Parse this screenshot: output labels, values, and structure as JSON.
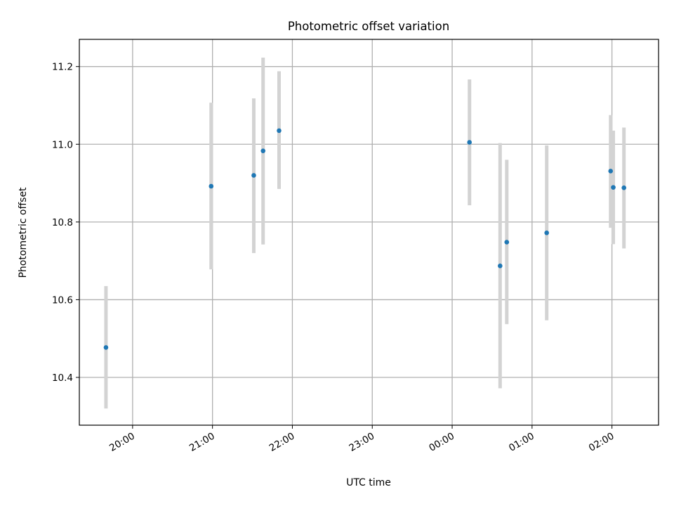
{
  "chart_data": {
    "type": "scatter",
    "title": "Photometric offset variation",
    "xlabel": "UTC time",
    "ylabel": "Photometric offset",
    "x_axis": {
      "kind": "time",
      "xlim": [
        "19:20",
        "02:35"
      ],
      "tick_labels": [
        "20:00",
        "21:00",
        "22:00",
        "23:00",
        "00:00",
        "01:00",
        "02:00"
      ]
    },
    "y_axis": {
      "ylim": [
        10.277,
        11.27
      ],
      "tick_values": [
        10.4,
        10.6,
        10.8,
        11.0,
        11.2
      ],
      "tick_labels": [
        "10.4",
        "10.6",
        "10.8",
        "11.0",
        "11.2"
      ]
    },
    "grid": true,
    "legend": "none",
    "colors": {
      "marker": "#1f77b4",
      "error_bar": "#d3d3d3",
      "grid": "#b0b0b0"
    },
    "points": [
      {
        "time": "19:40",
        "y": 10.477,
        "err_low": 10.32,
        "err_high": 10.635
      },
      {
        "time": "20:59",
        "y": 10.892,
        "err_low": 10.678,
        "err_high": 11.107
      },
      {
        "time": "21:31",
        "y": 10.92,
        "err_low": 10.72,
        "err_high": 11.118
      },
      {
        "time": "21:38",
        "y": 10.983,
        "err_low": 10.742,
        "err_high": 11.223
      },
      {
        "time": "21:50",
        "y": 11.035,
        "err_low": 10.885,
        "err_high": 11.188
      },
      {
        "time": "00:13",
        "y": 11.005,
        "err_low": 10.843,
        "err_high": 11.167
      },
      {
        "time": "00:36",
        "y": 10.687,
        "err_low": 10.372,
        "err_high": 11.003
      },
      {
        "time": "00:41",
        "y": 10.748,
        "err_low": 10.537,
        "err_high": 10.96
      },
      {
        "time": "01:11",
        "y": 10.772,
        "err_low": 10.547,
        "err_high": 10.997
      },
      {
        "time": "01:59",
        "y": 10.931,
        "err_low": 10.785,
        "err_high": 11.075
      },
      {
        "time": "02:01",
        "y": 10.889,
        "err_low": 10.743,
        "err_high": 11.035
      },
      {
        "time": "02:09",
        "y": 10.888,
        "err_low": 10.732,
        "err_high": 11.043
      }
    ]
  }
}
